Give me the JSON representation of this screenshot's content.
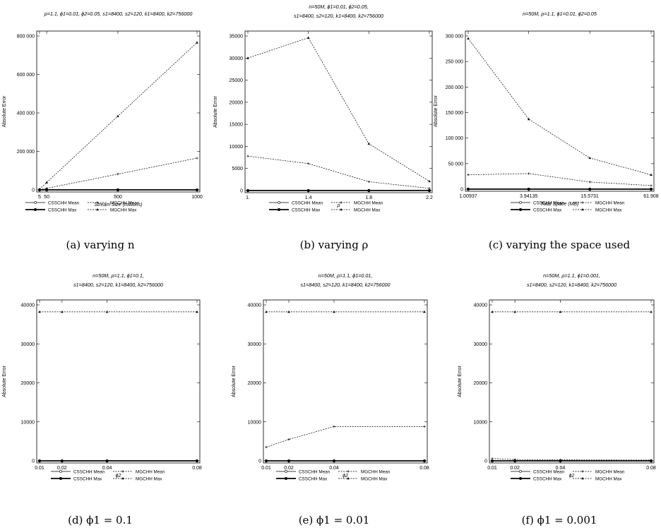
{
  "legend_labels": [
    "CSSCHH Mean",
    "MGCHH Mean",
    "CSSCHH Max",
    "MGCHH Max"
  ],
  "chart_data": [
    {
      "type": "line",
      "title": "ρ=1.1, ϕ1=0.01, ϕ2=0.05, s1=8400, s2=120, k1=8400, k2=756000",
      "caption": "(a) varying n",
      "xlabel": "Stream Size (millions)",
      "ylabel": "Absolute Error",
      "x_scale": "linear",
      "x": [
        5,
        50,
        500,
        1000
      ],
      "x_ticklabels": [
        "5",
        "50",
        "500",
        "1000"
      ],
      "xlim": [
        5,
        1000
      ],
      "ylim": [
        0,
        800000
      ],
      "yticks": [
        0,
        200000,
        400000,
        600000,
        800000
      ],
      "ytick_labels": [
        "0",
        "200 000",
        "400 000",
        "600 000",
        "800 000"
      ],
      "series": [
        {
          "name": "CSSCHH Mean",
          "values": [
            0,
            0,
            0,
            0
          ]
        },
        {
          "name": "MGCHH Mean",
          "values": [
            800,
            8000,
            82000,
            165000
          ]
        },
        {
          "name": "CSSCHH Max",
          "values": [
            0,
            0,
            0,
            0
          ]
        },
        {
          "name": "MGCHH Max",
          "values": [
            3800,
            38000,
            383000,
            766000
          ]
        }
      ]
    },
    {
      "type": "line",
      "title": "n=50M, ϕ1=0.01, ϕ2=0.05,",
      "title2": "s1=8400, s2=120, k1=8400, k2=756000",
      "caption": "(b) varying ρ",
      "xlabel": "ρ",
      "ylabel": "Absolute Error",
      "x_scale": "linear",
      "x": [
        1.0,
        1.4,
        1.8,
        2.2
      ],
      "x_ticklabels": [
        "1.",
        "1.4",
        "1.8",
        "2.2"
      ],
      "xlim": [
        1.0,
        2.2
      ],
      "ylim": [
        0,
        35000
      ],
      "yticks": [
        0,
        5000,
        10000,
        15000,
        20000,
        25000,
        30000,
        35000
      ],
      "ytick_labels": [
        "0",
        "5000",
        "10000",
        "15000",
        "20000",
        "25000",
        "30000",
        "35000"
      ],
      "series": [
        {
          "name": "CSSCHH Mean",
          "values": [
            0,
            0,
            0,
            0
          ]
        },
        {
          "name": "MGCHH Mean",
          "values": [
            7800,
            6100,
            2000,
            500
          ]
        },
        {
          "name": "CSSCHH Max",
          "values": [
            0,
            0,
            0,
            0
          ]
        },
        {
          "name": "MGCHH Max",
          "values": [
            30000,
            34600,
            10600,
            2100
          ]
        }
      ]
    },
    {
      "type": "line",
      "title": "n=50M, ρ=1.1, ϕ1=0.01, ϕ2=0.05",
      "caption": "(c) varying the space used",
      "xlabel": "Total Space (MB)",
      "ylabel": "Absolute Error",
      "x_scale": "log",
      "x": [
        1.00937,
        3.94135,
        15.5731,
        61.908
      ],
      "x_ticklabels": [
        "1.00937",
        "3.94135",
        "15.5731",
        "61.908"
      ],
      "xlim": [
        1.00937,
        61.908
      ],
      "ylim": [
        0,
        300000
      ],
      "yticks": [
        0,
        50000,
        100000,
        150000,
        200000,
        250000,
        300000
      ],
      "ytick_labels": [
        "0",
        "50 000",
        "100 000",
        "150 000",
        "200 000",
        "250 000",
        "300 000"
      ],
      "series": [
        {
          "name": "CSSCHH Mean",
          "values": [
            0,
            0,
            0,
            0
          ]
        },
        {
          "name": "MGCHH Mean",
          "values": [
            28000,
            30500,
            14000,
            7000
          ]
        },
        {
          "name": "CSSCHH Max",
          "values": [
            0,
            0,
            0,
            0
          ]
        },
        {
          "name": "MGCHH Max",
          "values": [
            295000,
            137000,
            61000,
            28000
          ]
        }
      ]
    },
    {
      "type": "line",
      "title": "n=50M, ρ=1.1, ϕ1=0.1,",
      "title2": "s1=8400, s2=120, k1=8400, k2=756000",
      "caption": "(d) ϕ1 = 0.1",
      "xlabel": "ϕ2",
      "ylabel": "Absolute Error",
      "x_scale": "linear",
      "x": [
        0.01,
        0.02,
        0.04,
        0.08
      ],
      "x_ticklabels": [
        "0.01",
        "0.02",
        "0.04",
        "0.08"
      ],
      "xlim": [
        0.01,
        0.08
      ],
      "ylim": [
        0,
        40000
      ],
      "yticks": [
        0,
        10000,
        20000,
        30000,
        40000
      ],
      "ytick_labels": [
        "0",
        "10000",
        "20000",
        "30000",
        "40000"
      ],
      "series": [
        {
          "name": "CSSCHH Mean",
          "values": [
            0,
            0,
            0,
            0
          ]
        },
        {
          "name": "MGCHH Mean",
          "values": [
            60,
            60,
            60,
            60
          ]
        },
        {
          "name": "CSSCHH Max",
          "values": [
            0,
            0,
            0,
            0
          ]
        },
        {
          "name": "MGCHH Max",
          "values": [
            38200,
            38200,
            38200,
            38200
          ]
        }
      ]
    },
    {
      "type": "line",
      "title": "n=50M, ρ=1.1, ϕ1=0.01,",
      "title2": "s1=8400, s2=120, k1=8400, k2=756000",
      "caption": "(e) ϕ1 = 0.01",
      "xlabel": "ϕ2",
      "ylabel": "Absolute Error",
      "x_scale": "linear",
      "x": [
        0.01,
        0.02,
        0.04,
        0.08
      ],
      "x_ticklabels": [
        "0.01",
        "0.02",
        "0.04",
        "0.08"
      ],
      "xlim": [
        0.01,
        0.08
      ],
      "ylim": [
        0,
        40000
      ],
      "yticks": [
        0,
        10000,
        20000,
        30000,
        40000
      ],
      "ytick_labels": [
        "0",
        "10000",
        "20000",
        "30000",
        "40000"
      ],
      "series": [
        {
          "name": "CSSCHH Mean",
          "values": [
            0,
            0,
            0,
            0
          ]
        },
        {
          "name": "MGCHH Mean",
          "values": [
            3500,
            5500,
            8800,
            8800
          ]
        },
        {
          "name": "CSSCHH Max",
          "values": [
            0,
            0,
            0,
            0
          ]
        },
        {
          "name": "MGCHH Max",
          "values": [
            38200,
            38200,
            38200,
            38200
          ]
        }
      ]
    },
    {
      "type": "line",
      "title": "n=50M, ρ=1.1, ϕ1=0.001,",
      "title2": "s1=8400, s2=120, k1=8400, k2=756000",
      "caption": "(f) ϕ1 = 0.001",
      "xlabel": "ϕ2",
      "ylabel": "Absolute Error",
      "x_scale": "linear",
      "x": [
        0.01,
        0.02,
        0.04,
        0.08
      ],
      "x_ticklabels": [
        "0.01",
        "0.02",
        "0.04",
        "0.08"
      ],
      "xlim": [
        0.01,
        0.08
      ],
      "ylim": [
        0,
        40000
      ],
      "yticks": [
        0,
        10000,
        20000,
        30000,
        40000
      ],
      "ytick_labels": [
        "0",
        "10000",
        "20000",
        "30000",
        "40000"
      ],
      "series": [
        {
          "name": "CSSCHH Mean",
          "values": [
            0,
            0,
            0,
            0
          ]
        },
        {
          "name": "MGCHH Mean",
          "values": [
            600,
            350,
            250,
            200
          ]
        },
        {
          "name": "CSSCHH Max",
          "values": [
            0,
            0,
            0,
            0
          ]
        },
        {
          "name": "MGCHH Max",
          "values": [
            38200,
            38200,
            38200,
            38200
          ]
        }
      ]
    }
  ]
}
